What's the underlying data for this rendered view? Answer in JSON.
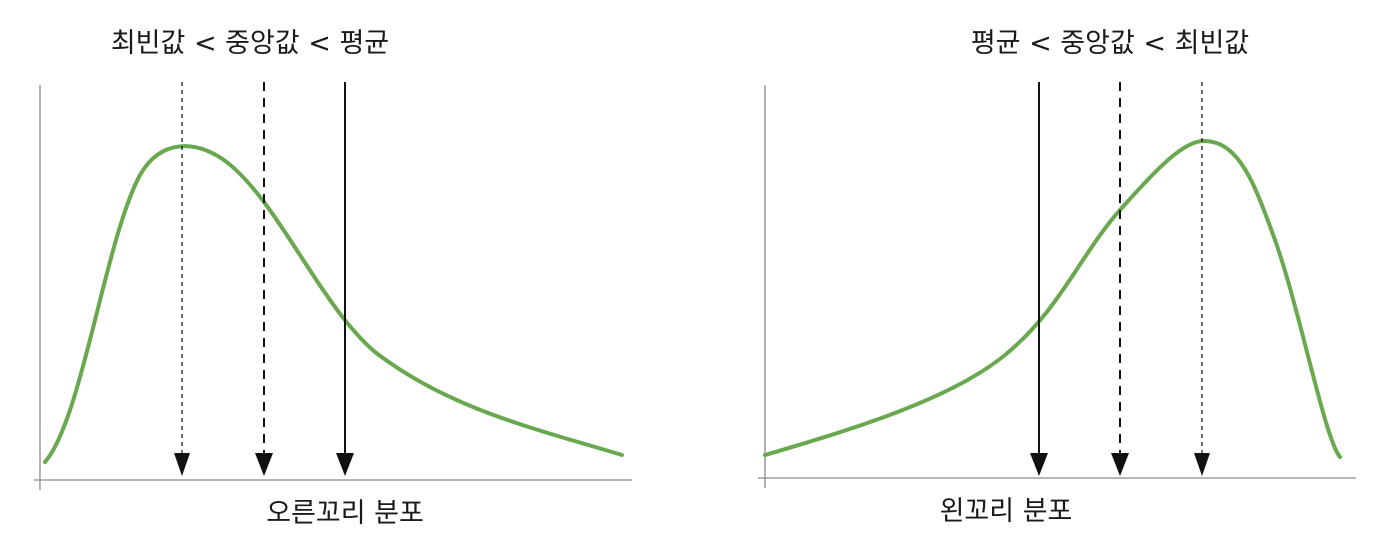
{
  "colors": {
    "curve": "#6aa84f",
    "arrow": "#111111",
    "axis": "#8a8a8a",
    "background": "#ffffff"
  },
  "panels": [
    {
      "id": "right-skew",
      "title": "최빈값 < 중앙값 < 평균",
      "caption": "오른꼬리 분포",
      "markers": [
        {
          "kind": "mode",
          "style": "dotted"
        },
        {
          "kind": "median",
          "style": "dashed"
        },
        {
          "kind": "mean",
          "style": "solid"
        }
      ]
    },
    {
      "id": "left-skew",
      "title": "평균 < 중앙값 < 최빈값",
      "caption": "왼꼬리 분포",
      "markers": [
        {
          "kind": "mean",
          "style": "solid"
        },
        {
          "kind": "median",
          "style": "dashed"
        },
        {
          "kind": "mode",
          "style": "dotted"
        }
      ]
    }
  ]
}
